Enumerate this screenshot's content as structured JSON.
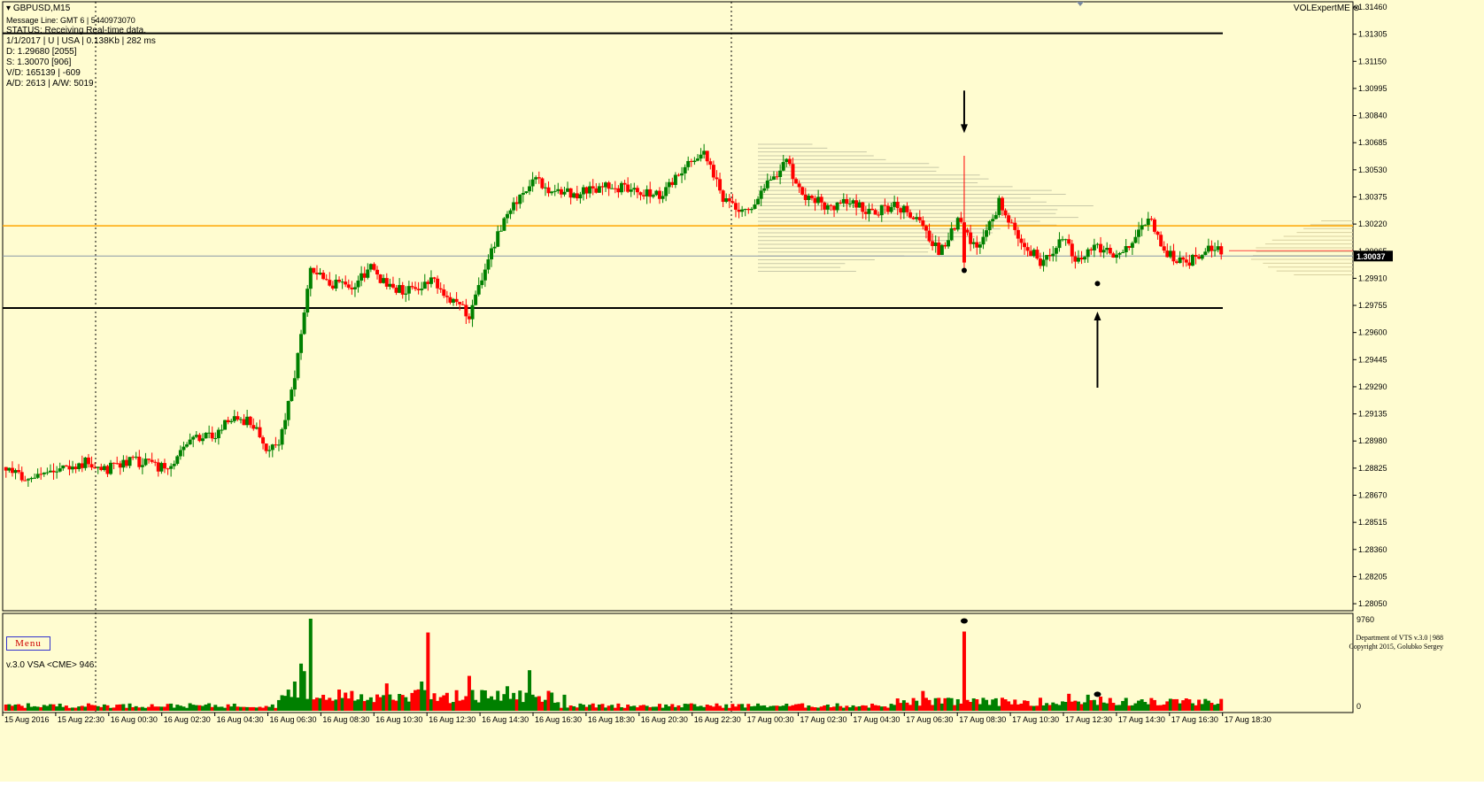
{
  "header": {
    "symbol": "GBPUSD,M15",
    "message_line": "Message Line: GMT 6 | 5440973070",
    "status": "STATUS:  Receiving Real-time data.",
    "info": [
      "1/1/2017 | U | USA | 0.138Kb | 282 ms",
      "D: 1.29680  [2055]",
      "S: 1.30070  [906]",
      "V/D: 165139 | -609",
      "A/D: 2613 | A/W: 5019"
    ]
  },
  "plugin_label": "VOLExpertME",
  "menu_label": "Menu",
  "copyright": [
    "Department of VTS  v.3.0 | 988",
    "Copyright 2015, Golubko Sergey"
  ],
  "indicator_label": "v.3.0 VSA <CME> 946",
  "colors": {
    "background": "#fffcd0",
    "bull": "#008000",
    "bear": "#ff0000",
    "level": "#ffa500",
    "profile": "#c8c8a8"
  },
  "chart_data": {
    "type": "candlestick",
    "price_axis": {
      "ticks": [
        "1.31460",
        "1.31305",
        "1.31150",
        "1.30995",
        "1.30840",
        "1.30685",
        "1.30530",
        "1.30375",
        "1.30220",
        "1.30065",
        "1.29910",
        "1.29755",
        "1.29600",
        "1.29445",
        "1.29290",
        "1.29135",
        "1.28980",
        "1.28825",
        "1.28670",
        "1.28515",
        "1.28360",
        "1.28205",
        "1.28050"
      ],
      "current_price": "1.30037",
      "range": [
        1.2802,
        1.3146
      ]
    },
    "levels": {
      "upper_black": 1.3131,
      "lower_black": 1.2974,
      "orange": 1.3021,
      "current": 1.30037
    },
    "time_axis": [
      "15 Aug 2016",
      "15 Aug 22:30",
      "16 Aug 00:30",
      "16 Aug 02:30",
      "16 Aug 04:30",
      "16 Aug 06:30",
      "16 Aug 08:30",
      "16 Aug 10:30",
      "16 Aug 12:30",
      "16 Aug 14:30",
      "16 Aug 16:30",
      "16 Aug 18:30",
      "16 Aug 20:30",
      "16 Aug 22:30",
      "17 Aug 00:30",
      "17 Aug 02:30",
      "17 Aug 04:30",
      "17 Aug 06:30",
      "17 Aug 08:30",
      "17 Aug 10:30",
      "17 Aug 12:30",
      "17 Aug 14:30",
      "17 Aug 16:30",
      "17 Aug 18:30"
    ],
    "close_anchors": [
      [
        0,
        1.288
      ],
      [
        10,
        1.2877
      ],
      [
        17,
        1.2881
      ],
      [
        25,
        1.2886
      ],
      [
        32,
        1.2882
      ],
      [
        40,
        1.2887
      ],
      [
        50,
        1.2882
      ],
      [
        60,
        1.29
      ],
      [
        66,
        1.2902
      ],
      [
        72,
        1.2912
      ],
      [
        78,
        1.2908
      ],
      [
        82,
        1.2895
      ],
      [
        86,
        1.2898
      ],
      [
        90,
        1.2925
      ],
      [
        96,
        1.2996
      ],
      [
        103,
        1.2988
      ],
      [
        110,
        1.2987
      ],
      [
        115,
        1.2997
      ],
      [
        120,
        1.2986
      ],
      [
        127,
        1.2984
      ],
      [
        134,
        1.299
      ],
      [
        140,
        1.298
      ],
      [
        146,
        1.297
      ],
      [
        151,
        1.2995
      ],
      [
        155,
        1.3016
      ],
      [
        160,
        1.3033
      ],
      [
        166,
        1.3049
      ],
      [
        170,
        1.3042
      ],
      [
        180,
        1.3039
      ],
      [
        190,
        1.3045
      ],
      [
        198,
        1.304
      ],
      [
        206,
        1.3038
      ],
      [
        213,
        1.3052
      ],
      [
        220,
        1.3064
      ],
      [
        226,
        1.3036
      ],
      [
        233,
        1.3028
      ],
      [
        240,
        1.3046
      ],
      [
        246,
        1.3057
      ],
      [
        252,
        1.3038
      ],
      [
        259,
        1.3032
      ],
      [
        266,
        1.3034
      ],
      [
        273,
        1.3028
      ],
      [
        280,
        1.3033
      ],
      [
        287,
        1.3026
      ],
      [
        294,
        1.3006
      ],
      [
        300,
        1.3024
      ],
      [
        306,
        1.3006
      ],
      [
        313,
        1.3034
      ],
      [
        320,
        1.3012
      ],
      [
        327,
        1.2999
      ],
      [
        333,
        1.3013
      ],
      [
        338,
        1.3
      ],
      [
        343,
        1.3011
      ],
      [
        350,
        1.3002
      ],
      [
        355,
        1.3013
      ],
      [
        360,
        1.3025
      ],
      [
        366,
        1.3005
      ],
      [
        372,
        1.2999
      ],
      [
        378,
        1.3008
      ],
      [
        383,
        1.3006
      ]
    ],
    "special_candles": [
      {
        "index": 302,
        "open": 1.3023,
        "close": 1.3,
        "high": 1.3061,
        "low": 1.2995
      }
    ],
    "volume_axis": {
      "max_label": "9760",
      "min_label": "0",
      "max": 9760
    },
    "volume_spikes": [
      [
        96,
        9760
      ],
      [
        93,
        5000
      ],
      [
        94,
        4200
      ],
      [
        91,
        3100
      ],
      [
        133,
        8300
      ],
      [
        131,
        3100
      ],
      [
        146,
        3700
      ],
      [
        165,
        4300
      ],
      [
        176,
        1700
      ],
      [
        302,
        8400
      ],
      [
        289,
        2100
      ],
      [
        335,
        1800
      ],
      [
        341,
        1700
      ],
      [
        345,
        1500
      ],
      [
        120,
        2900
      ],
      [
        158,
        2600
      ],
      [
        150,
        2200
      ],
      [
        139,
        1900
      ]
    ],
    "markers": [
      {
        "type": "arrow-down",
        "index": 302,
        "price": 1.3074
      },
      {
        "type": "arrow-up",
        "index": 344,
        "price": 1.2972
      },
      {
        "type": "dot",
        "index": 302,
        "price": 1.29955
      },
      {
        "type": "dot",
        "index": 344,
        "price": 1.2988
      }
    ]
  }
}
